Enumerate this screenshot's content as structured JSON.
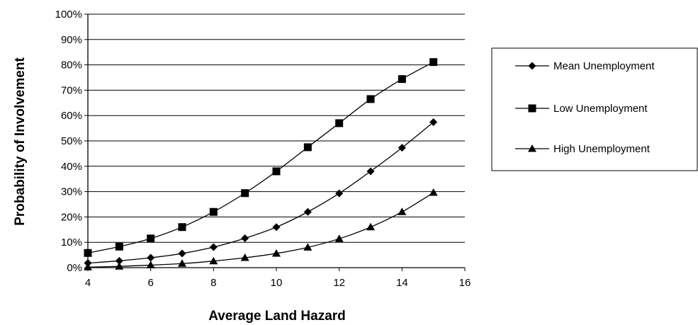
{
  "chart_data": {
    "type": "line",
    "title": "",
    "xlabel": "Average Land Hazard",
    "ylabel": "Probability of Involvement",
    "xlim": [
      4,
      16
    ],
    "ylim": [
      0,
      100
    ],
    "x_ticks": [
      "4",
      "6",
      "8",
      "10",
      "12",
      "14",
      "16"
    ],
    "y_ticks": [
      "0%",
      "10%",
      "20%",
      "30%",
      "40%",
      "50%",
      "60%",
      "70%",
      "80%",
      "90%",
      "100%"
    ],
    "grid": "horizontal",
    "legend": "right",
    "x": [
      4,
      5,
      6,
      7,
      8,
      9,
      10,
      11,
      12,
      13,
      14,
      15
    ],
    "series": [
      {
        "name": "Mean Unemployment",
        "marker": "diamond",
        "values": [
          1.8,
          2.7,
          3.9,
          5.6,
          8.1,
          11.6,
          16.0,
          22.0,
          29.3,
          38.0,
          47.3,
          57.4
        ]
      },
      {
        "name": "Low Unemployment",
        "marker": "square",
        "values": [
          5.8,
          8.3,
          11.5,
          16.0,
          22.0,
          29.4,
          38.0,
          47.5,
          57.0,
          66.5,
          74.4,
          81.1
        ]
      },
      {
        "name": "High Unemployment",
        "marker": "triangle",
        "values": [
          0.2,
          0.5,
          1.0,
          1.6,
          2.6,
          3.9,
          5.6,
          8.0,
          11.4,
          16.0,
          22.0,
          29.6
        ]
      }
    ]
  }
}
